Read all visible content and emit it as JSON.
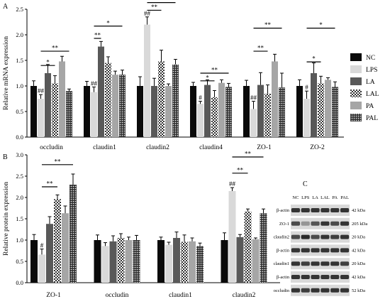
{
  "panels": {
    "a": "A",
    "b": "B",
    "c": "C"
  },
  "legend": {
    "items": [
      {
        "label": "NC",
        "style": "nc"
      },
      {
        "label": "LPS",
        "style": "lps"
      },
      {
        "label": "LA",
        "style": "la"
      },
      {
        "label": "LAL",
        "style": "lal"
      },
      {
        "label": "PA",
        "style": "pa"
      },
      {
        "label": "PAL",
        "style": "pal"
      }
    ]
  },
  "colors": {
    "nc": "#0a0a0a",
    "lps": "#d9d9d9",
    "la": "#595959",
    "pa": "#a6a6a6",
    "pattern_fg": "#333333",
    "pattern_bg": "#ffffff"
  },
  "chart_data": [
    {
      "type": "bar",
      "panel": "A",
      "ylabel": "Relative mRNA expression",
      "ylim": [
        0.0,
        2.5
      ],
      "yticks": [
        "0.0",
        "0.5",
        "1.0",
        "1.5",
        "2.0",
        "2.5"
      ],
      "categories": [
        "occludin",
        "claudin1",
        "claudin2",
        "claudin4",
        "ZO-1",
        "ZO-2"
      ],
      "series": [
        {
          "name": "NC",
          "values": [
            1.0,
            1.0,
            1.0,
            1.0,
            1.0,
            1.0
          ],
          "errors": [
            0.1,
            0.09,
            0.18,
            0.07,
            0.11,
            0.12
          ]
        },
        {
          "name": "LPS",
          "values": [
            0.75,
            0.88,
            2.2,
            0.65,
            0.55,
            0.75
          ],
          "errors": [
            0.08,
            0.1,
            0.15,
            0.05,
            0.15,
            0.15
          ]
        },
        {
          "name": "LA",
          "values": [
            1.25,
            1.77,
            1.0,
            1.02,
            1.02,
            1.25
          ],
          "errors": [
            0.17,
            0.1,
            0.15,
            0.1,
            0.24,
            0.2
          ]
        },
        {
          "name": "LAL",
          "values": [
            1.05,
            1.45,
            1.48,
            0.78,
            0.85,
            1.05
          ],
          "errors": [
            0.15,
            0.12,
            0.22,
            0.13,
            0.17,
            0.14
          ]
        },
        {
          "name": "PA",
          "values": [
            1.48,
            1.22,
            1.0,
            1.06,
            1.48,
            1.12
          ],
          "errors": [
            0.1,
            0.07,
            0.04,
            0.06,
            0.14,
            0.04
          ]
        },
        {
          "name": "PAL",
          "values": [
            0.9,
            1.22,
            1.42,
            0.98,
            0.97,
            0.98
          ],
          "errors": [
            0.04,
            0.09,
            0.1,
            0.07,
            0.28,
            0.1
          ]
        }
      ],
      "annotations": [
        {
          "type": "text",
          "cat": 0,
          "bar": 1,
          "text": "##"
        },
        {
          "type": "text",
          "cat": 1,
          "bar": 1,
          "text": "##"
        },
        {
          "type": "text",
          "cat": 2,
          "bar": 1,
          "text": "##"
        },
        {
          "type": "text",
          "cat": 3,
          "bar": 1,
          "text": "#"
        },
        {
          "type": "text",
          "cat": 4,
          "bar": 1,
          "text": "##"
        },
        {
          "type": "text",
          "cat": 5,
          "bar": 1,
          "text": "#"
        },
        {
          "type": "line",
          "cat": 0,
          "from": 1,
          "to": 3,
          "y": 1.4,
          "text": "*"
        },
        {
          "type": "line",
          "cat": 0,
          "from": 1,
          "to": 5,
          "y": 1.68,
          "text": "**"
        },
        {
          "type": "line",
          "cat": 1,
          "from": 1,
          "to": 2,
          "y": 1.93,
          "text": "**"
        },
        {
          "type": "line",
          "cat": 1,
          "from": 1,
          "to": 5,
          "y": 2.17,
          "text": "*"
        },
        {
          "type": "line",
          "cat": 2,
          "from": 1,
          "to": 3,
          "y": 2.48,
          "text": "**"
        },
        {
          "type": "line",
          "cat": 2,
          "from": 1,
          "to": 5,
          "y": 2.63,
          "text": "**"
        },
        {
          "type": "line",
          "cat": 3,
          "from": 1,
          "to": 3,
          "y": 1.1,
          "text": "*"
        },
        {
          "type": "line",
          "cat": 3,
          "from": 1,
          "to": 5,
          "y": 1.25,
          "text": "**"
        },
        {
          "type": "line",
          "cat": 4,
          "from": 1,
          "to": 3,
          "y": 1.68,
          "text": "**"
        },
        {
          "type": "line",
          "cat": 4,
          "from": 1,
          "to": 5,
          "y": 2.13,
          "text": "**"
        },
        {
          "type": "line",
          "cat": 5,
          "from": 1,
          "to": 3,
          "y": 1.47,
          "text": "*"
        },
        {
          "type": "line",
          "cat": 5,
          "from": 1,
          "to": 5,
          "y": 2.13,
          "text": "*"
        }
      ]
    },
    {
      "type": "bar",
      "panel": "B",
      "ylabel": "Relative protein expression",
      "ylim": [
        0.0,
        3.0
      ],
      "yticks": [
        "0.0",
        "0.5",
        "1.0",
        "1.5",
        "2.0",
        "2.5",
        "3.0"
      ],
      "categories": [
        "ZO-1",
        "occludin",
        "claudin1",
        "claudin2"
      ],
      "series": [
        {
          "name": "NC",
          "values": [
            1.0,
            1.0,
            1.0,
            1.0
          ],
          "errors": [
            0.13,
            0.12,
            0.07,
            0.17
          ]
        },
        {
          "name": "LPS",
          "values": [
            0.66,
            0.86,
            0.89,
            2.15
          ],
          "errors": [
            0.13,
            0.08,
            0.06,
            0.08
          ]
        },
        {
          "name": "LA",
          "values": [
            1.38,
            0.97,
            1.05,
            1.07
          ],
          "errors": [
            0.17,
            0.13,
            0.14,
            0.06
          ]
        },
        {
          "name": "LAL",
          "values": [
            1.96,
            1.05,
            0.96,
            1.67
          ],
          "errors": [
            0.1,
            0.1,
            0.16,
            0.06
          ]
        },
        {
          "name": "PA",
          "values": [
            1.63,
            1.0,
            0.97,
            1.02
          ],
          "errors": [
            0.17,
            0.07,
            0.08,
            0.03
          ]
        },
        {
          "name": "PAL",
          "values": [
            2.3,
            1.0,
            0.86,
            1.63
          ],
          "errors": [
            0.25,
            0.11,
            0.07,
            0.1
          ]
        }
      ],
      "annotations": [
        {
          "type": "text",
          "cat": 0,
          "bar": 1,
          "text": "#"
        },
        {
          "type": "text",
          "cat": 3,
          "bar": 1,
          "text": "##"
        },
        {
          "type": "line",
          "cat": 0,
          "from": 1,
          "to": 3,
          "y": 2.25,
          "text": "**"
        },
        {
          "type": "line",
          "cat": 0,
          "from": 1,
          "to": 5,
          "y": 2.77,
          "text": "**"
        },
        {
          "type": "line",
          "cat": 3,
          "from": 1,
          "to": 3,
          "y": 2.57,
          "text": "**"
        },
        {
          "type": "line",
          "cat": 3,
          "from": 1,
          "to": 5,
          "y": 2.95,
          "text": "**"
        }
      ]
    }
  ],
  "western_blot": {
    "lane_labels": [
      "NC",
      "LPS",
      "LA",
      "LAL",
      "PA",
      "PAL"
    ],
    "rows": [
      {
        "protein": "β-actin",
        "kda": "42 kDa",
        "intensity": [
          0.85,
          0.85,
          0.85,
          0.85,
          0.85,
          0.85
        ]
      },
      {
        "protein": "ZO-1",
        "kda": "205 kDa",
        "intensity": [
          0.75,
          0.4,
          0.7,
          0.85,
          0.75,
          0.85
        ]
      },
      {
        "protein": "claudin2",
        "kda": "20 kDa",
        "intensity": [
          0.75,
          0.9,
          0.75,
          0.85,
          0.8,
          0.85
        ]
      },
      {
        "protein": "β-actin",
        "kda": "42 kDa",
        "intensity": [
          0.85,
          0.85,
          0.85,
          0.85,
          0.85,
          0.85
        ]
      },
      {
        "protein": "claudin1",
        "kda": "20 kDa",
        "intensity": [
          0.85,
          0.8,
          0.85,
          0.85,
          0.85,
          0.8
        ]
      },
      {
        "protein": "β-actin",
        "kda": "42 kDa",
        "intensity": [
          0.85,
          0.85,
          0.85,
          0.85,
          0.85,
          0.85
        ]
      },
      {
        "protein": "occludin",
        "kda": "52 kDa",
        "intensity": [
          0.85,
          0.8,
          0.85,
          0.85,
          0.85,
          0.85
        ]
      }
    ]
  }
}
